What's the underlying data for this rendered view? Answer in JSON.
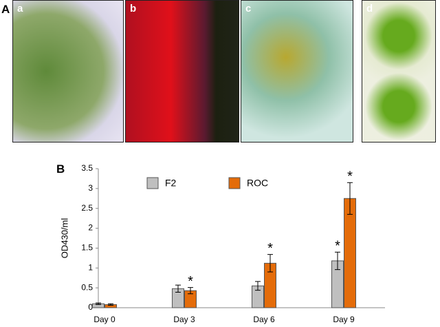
{
  "panels": {
    "A": "A",
    "B": "B"
  },
  "photos": [
    "a",
    "b",
    "c",
    "d"
  ],
  "chart_data": {
    "type": "bar",
    "ylabel": "OD430/ml",
    "categories": [
      "Day 0",
      "Day 3",
      "Day 6",
      "Day 9"
    ],
    "series": [
      {
        "name": "F2",
        "color": "#bfbfbf",
        "values": [
          0.1,
          0.48,
          0.55,
          1.18
        ],
        "errors": [
          0.02,
          0.09,
          0.11,
          0.22
        ],
        "significance": [
          null,
          null,
          null,
          "*"
        ]
      },
      {
        "name": "ROC",
        "color": "#e46c0a",
        "values": [
          0.08,
          0.43,
          1.12,
          2.75
        ],
        "errors": [
          0.02,
          0.08,
          0.22,
          0.4
        ],
        "significance": [
          null,
          "*",
          "*",
          "*"
        ]
      }
    ],
    "ylim": [
      0,
      3.5
    ],
    "yticks": [
      0,
      0.5,
      1,
      1.5,
      2,
      2.5,
      3,
      3.5
    ],
    "grid": false
  }
}
